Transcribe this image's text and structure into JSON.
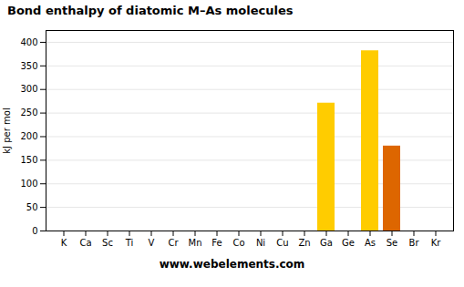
{
  "chart_data": {
    "type": "bar",
    "title": "Bond enthalpy of diatomic M–As molecules",
    "y_label": "kJ per mol",
    "annotations": [
      "www.webelements.com"
    ],
    "categories": [
      "K",
      "Ca",
      "Sc",
      "Ti",
      "V",
      "Cr",
      "Mn",
      "Fe",
      "Co",
      "Ni",
      "Cu",
      "Zn",
      "Ga",
      "Ge",
      "As",
      "Se",
      "Br",
      "Kr"
    ],
    "values": [
      0,
      0,
      0,
      0,
      0,
      0,
      0,
      0,
      0,
      0,
      0,
      0,
      271,
      0,
      382,
      180,
      0,
      0
    ],
    "colors": [
      null,
      null,
      null,
      null,
      null,
      null,
      null,
      null,
      null,
      null,
      null,
      null,
      "#ffcc00",
      null,
      "#ffcc00",
      "#dd6600",
      null,
      null
    ],
    "ylim": [
      0,
      425
    ],
    "yticks": [
      0,
      50,
      100,
      150,
      200,
      250,
      300,
      350,
      400
    ],
    "grid": true
  }
}
